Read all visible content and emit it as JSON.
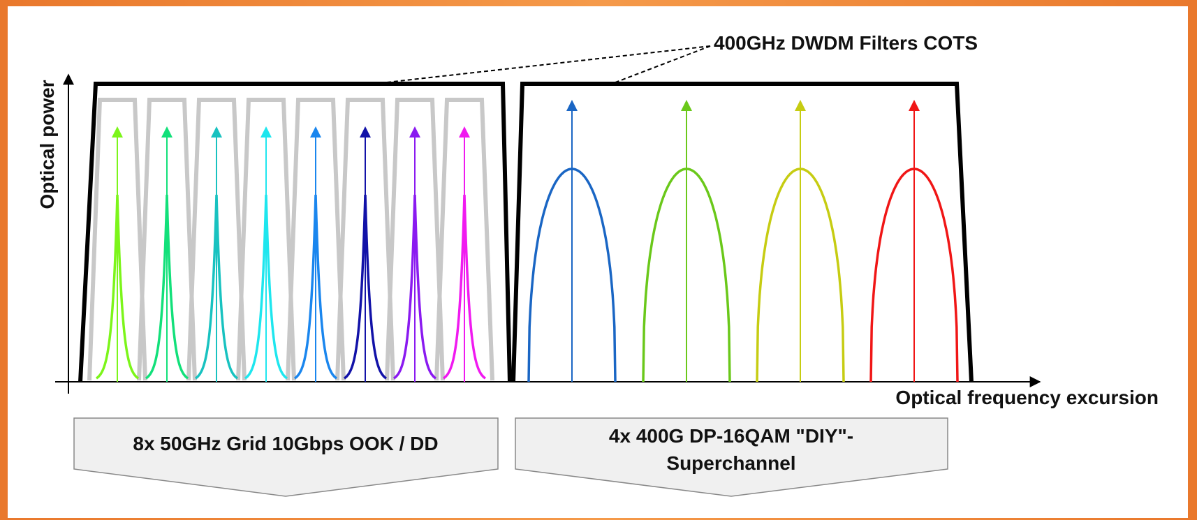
{
  "filter_label": "400GHz DWDM Filters COTS",
  "axis": {
    "y_label": "Optical power",
    "x_label": "Optical frequency excursion"
  },
  "groups": [
    {
      "label_lines": [
        "8x 50GHz Grid 10Gbps OOK / DD"
      ]
    },
    {
      "label_lines": [
        "4x 400G DP-16QAM \"DIY\"-",
        "Superchannel"
      ]
    }
  ],
  "ook_channel_colors": [
    "#7cf51a",
    "#12e07a",
    "#18c2c0",
    "#1ee6ee",
    "#1a86ee",
    "#1212a8",
    "#8a1af0",
    "#f01af0"
  ],
  "superchannel_colors": [
    "#1a66c4",
    "#6ac81a",
    "#c6cc12",
    "#f01616"
  ],
  "filter_color": "#000000",
  "grid_filter_color": "#c8c8c8"
}
